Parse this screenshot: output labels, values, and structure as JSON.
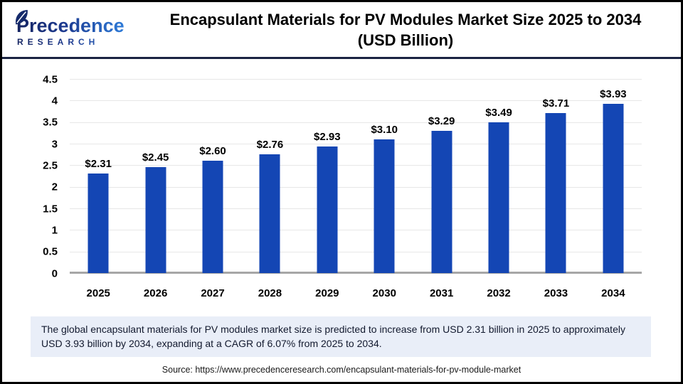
{
  "header": {
    "logo": {
      "name": "Precedence",
      "subname": "RESEARCH",
      "leaf_icon": "leaf-icon"
    },
    "title_line1": "Encapsulant Materials for PV Modules Market Size 2025 to 2034",
    "title_line2": "(USD Billion)"
  },
  "chart_data": {
    "type": "bar",
    "title": "Encapsulant Materials for PV Modules Market Size 2025 to 2034 (USD Billion)",
    "categories": [
      "2025",
      "2026",
      "2027",
      "2028",
      "2029",
      "2030",
      "2031",
      "2032",
      "2033",
      "2034"
    ],
    "values": [
      2.31,
      2.45,
      2.6,
      2.76,
      2.93,
      3.1,
      3.29,
      3.49,
      3.71,
      3.93
    ],
    "value_labels": [
      "$2.31",
      "$2.45",
      "$2.60",
      "$2.76",
      "$2.93",
      "$3.10",
      "$3.29",
      "$3.49",
      "$3.71",
      "$3.93"
    ],
    "xlabel": "",
    "ylabel": "",
    "ylim": [
      0,
      4.5
    ],
    "ytick_step": 0.5,
    "grid": true,
    "legend": "none",
    "bar_color": "#1446B4"
  },
  "summary": {
    "text": "The global encapsulant materials for PV modules market  size is predicted to increase from USD 2.31 billion in 2025 to approximately USD 3.93 billion by 2034, expanding at a CAGR of 6.07% from 2025 to 2034."
  },
  "source": {
    "text": "Source: https://www.precedenceresearch.com/encapsulant-materials-for-pv-module-market"
  },
  "colors": {
    "bar": "#1446B4",
    "gridline": "#e7e7e7",
    "axis_line": "#a6a6a6",
    "header_rule": "#1a2342",
    "summary_bg": "#e9eef8",
    "logo_gradient_start": "#152461",
    "logo_gradient_end": "#2f7cd9"
  }
}
